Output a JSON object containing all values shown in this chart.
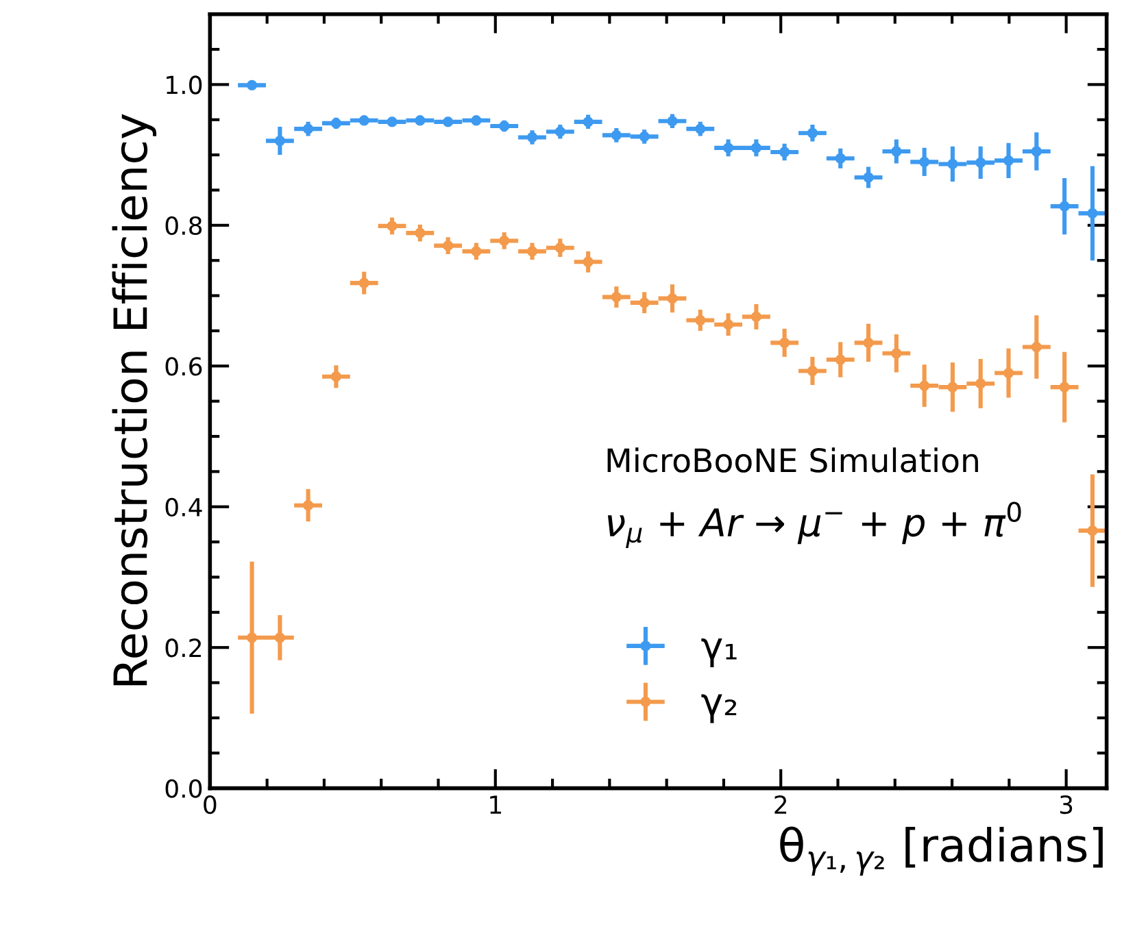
{
  "chart_data": {
    "type": "scatter",
    "ylabel": "Reconstruction Efficiency",
    "xlabel": "θ$_{γ₁,γ₂}$ [radians]",
    "annotations": [
      "MicroBooNE Simulation",
      "ν$_{μ}$ + Ar → μ$^{−}$ + p + π$^{0}$"
    ],
    "xlim": [
      0,
      3.1416
    ],
    "ylim": [
      0,
      1.1
    ],
    "xticks": [
      0,
      1,
      2,
      3
    ],
    "yticks": [
      {
        "value": 0,
        "label": "0.0"
      },
      {
        "value": 0.2,
        "label": "0.2"
      },
      {
        "value": 0.4,
        "label": "0.4"
      },
      {
        "value": 0.6,
        "label": "0.6"
      },
      {
        "value": 0.8,
        "label": "0.8"
      },
      {
        "value": 1.0,
        "label": "1.0"
      }
    ],
    "x": [
      0.147,
      0.245,
      0.344,
      0.442,
      0.54,
      0.638,
      0.736,
      0.834,
      0.933,
      1.031,
      1.129,
      1.227,
      1.325,
      1.424,
      1.522,
      1.62,
      1.718,
      1.816,
      1.914,
      2.013,
      2.111,
      2.209,
      2.307,
      2.405,
      2.503,
      2.602,
      2.7,
      2.798,
      2.896,
      2.994,
      3.092
    ],
    "marker": "circle",
    "legend": "bottom",
    "grid": false,
    "series": [
      {
        "name": "γ₁",
        "color": "#3d9af0",
        "values": [
          0.999,
          0.92,
          0.937,
          0.945,
          0.949,
          0.947,
          0.949,
          0.947,
          0.949,
          0.941,
          0.925,
          0.933,
          0.947,
          0.928,
          0.926,
          0.948,
          0.937,
          0.91,
          0.91,
          0.904,
          0.931,
          0.895,
          0.868,
          0.905,
          0.89,
          0.887,
          0.889,
          0.892,
          0.905,
          0.827,
          0.817
        ],
        "xerrors": [
          0.049,
          0.049,
          0.049,
          0.049,
          0.049,
          0.049,
          0.049,
          0.049,
          0.049,
          0.049,
          0.049,
          0.049,
          0.049,
          0.049,
          0.049,
          0.049,
          0.049,
          0.049,
          0.049,
          0.049,
          0.049,
          0.049,
          0.049,
          0.049,
          0.049,
          0.049,
          0.049,
          0.049,
          0.049,
          0.049,
          0.049
        ],
        "errors": [
          0.002,
          0.02,
          0.01,
          0.008,
          0.007,
          0.007,
          0.007,
          0.007,
          0.007,
          0.008,
          0.01,
          0.01,
          0.01,
          0.01,
          0.01,
          0.01,
          0.01,
          0.012,
          0.012,
          0.012,
          0.012,
          0.014,
          0.015,
          0.017,
          0.02,
          0.025,
          0.023,
          0.025,
          0.027,
          0.04,
          0.067
        ]
      },
      {
        "name": "γ₂",
        "color": "#f39a4c",
        "values": [
          0.214,
          0.214,
          0.402,
          0.585,
          0.718,
          0.799,
          0.789,
          0.771,
          0.763,
          0.778,
          0.763,
          0.768,
          0.748,
          0.698,
          0.69,
          0.696,
          0.665,
          0.659,
          0.67,
          0.633,
          0.593,
          0.609,
          0.633,
          0.618,
          0.572,
          0.57,
          0.575,
          0.59,
          0.627,
          0.57,
          0.366
        ],
        "xerrors": [
          0.049,
          0.049,
          0.049,
          0.049,
          0.049,
          0.049,
          0.049,
          0.049,
          0.049,
          0.049,
          0.049,
          0.049,
          0.049,
          0.049,
          0.049,
          0.049,
          0.049,
          0.049,
          0.049,
          0.049,
          0.049,
          0.049,
          0.049,
          0.049,
          0.049,
          0.049,
          0.049,
          0.049,
          0.049,
          0.049,
          0.049
        ],
        "errors": [
          0.108,
          0.032,
          0.023,
          0.016,
          0.016,
          0.012,
          0.012,
          0.012,
          0.012,
          0.012,
          0.012,
          0.013,
          0.015,
          0.015,
          0.015,
          0.02,
          0.015,
          0.016,
          0.018,
          0.02,
          0.02,
          0.025,
          0.027,
          0.027,
          0.03,
          0.035,
          0.035,
          0.035,
          0.045,
          0.05,
          0.08
        ]
      }
    ]
  }
}
